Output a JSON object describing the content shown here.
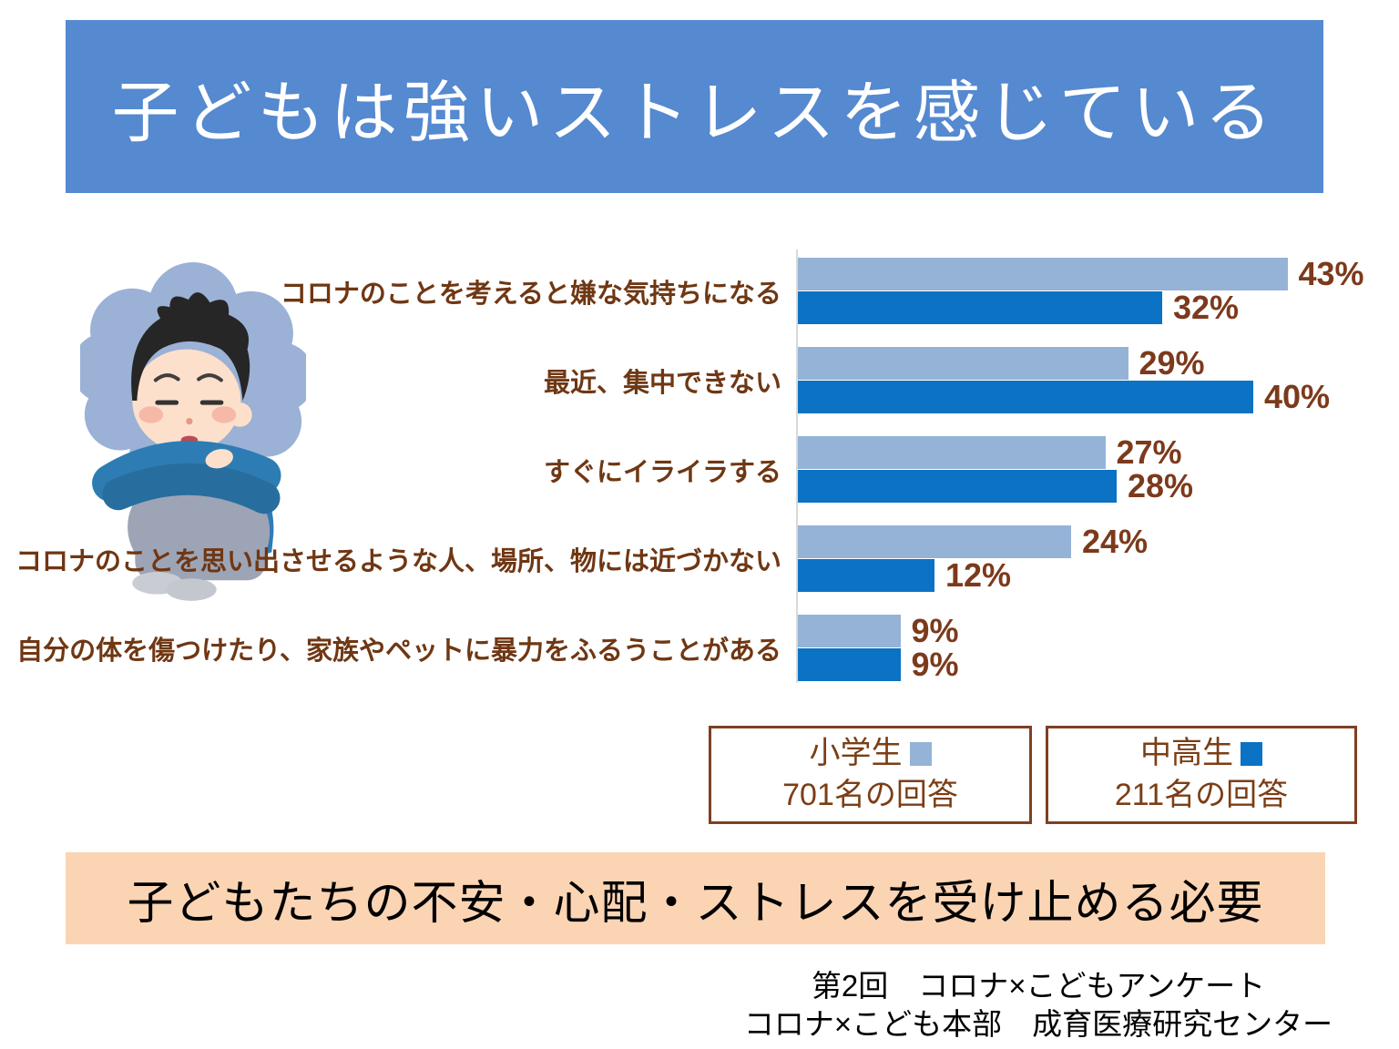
{
  "title": "子どもは強いストレスを感じている",
  "chart_data": {
    "type": "bar",
    "orientation": "horizontal",
    "title": "",
    "categories": [
      "コロナのことを考えると嫌な気持ちになる",
      "最近、集中できない",
      "すぐにイライラする",
      "コロナのことを思い出させるような人、場所、物には近づかない",
      "自分の体を傷つけたり、家族やペットに暴力をふるうことがある"
    ],
    "series": [
      {
        "key": "elementary",
        "name": "小学生",
        "respondents": "701名の回答",
        "color": "#95B3D7",
        "values": [
          43,
          29,
          27,
          24,
          9
        ]
      },
      {
        "key": "secondary",
        "name": "中高生",
        "respondents": "211名の回答",
        "color": "#0B72C4",
        "values": [
          32,
          40,
          28,
          12,
          9
        ]
      }
    ],
    "value_suffix": "%",
    "xlim": [
      0,
      46
    ],
    "grid": false,
    "legend_position": "bottom-right"
  },
  "summary_banner": "子どもたちの不安・心配・ストレスを受け止める必要",
  "footer": {
    "line1": "第2回　コロナ×こどもアンケート",
    "line2": "コロナ×こども本部　成育医療研究センター"
  },
  "colors": {
    "title_bg": "#5589D0",
    "title_text": "#FFFFFF",
    "banner_bg": "#FBD4B4",
    "banner_text": "#000000",
    "category_label": "#6F3713",
    "value_label": "#7C3A1C",
    "legend_border": "#7F4022",
    "legend_text": "#7B3E15",
    "axis_line": "#D9D9D9",
    "bar_elementary": "#95B3D7",
    "bar_secondary": "#0B72C4"
  },
  "illustration": "sad-boy-hugging-knees-icon"
}
